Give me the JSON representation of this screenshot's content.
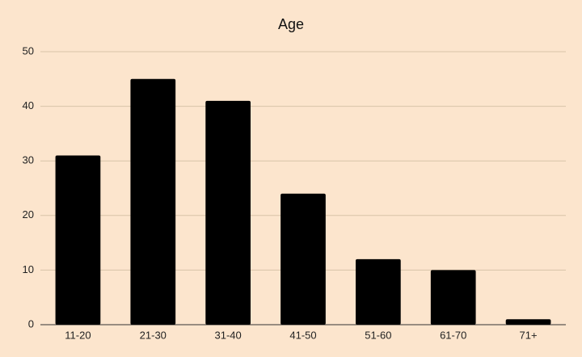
{
  "chart_data": {
    "type": "bar",
    "title": "Age",
    "categories": [
      "11-20",
      "21-30",
      "31-40",
      "41-50",
      "51-60",
      "61-70",
      "71+"
    ],
    "values": [
      31,
      45,
      41,
      24,
      12,
      10,
      1
    ],
    "color": "#000000",
    "ylim": [
      0,
      50
    ],
    "yticks": [
      0,
      10,
      20,
      30,
      40,
      50
    ],
    "grid": true
  }
}
